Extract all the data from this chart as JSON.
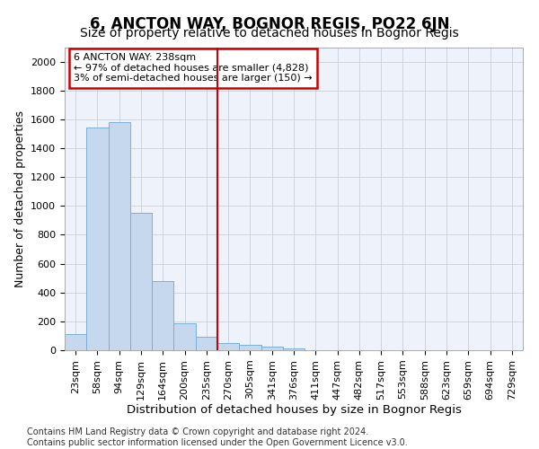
{
  "title": "6, ANCTON WAY, BOGNOR REGIS, PO22 6JN",
  "subtitle": "Size of property relative to detached houses in Bognor Regis",
  "xlabel": "Distribution of detached houses by size in Bognor Regis",
  "ylabel": "Number of detached properties",
  "categories": [
    "23sqm",
    "58sqm",
    "94sqm",
    "129sqm",
    "164sqm",
    "200sqm",
    "235sqm",
    "270sqm",
    "305sqm",
    "341sqm",
    "376sqm",
    "411sqm",
    "447sqm",
    "482sqm",
    "517sqm",
    "553sqm",
    "588sqm",
    "623sqm",
    "659sqm",
    "694sqm",
    "729sqm"
  ],
  "values": [
    110,
    1540,
    1580,
    950,
    480,
    185,
    95,
    48,
    38,
    25,
    15,
    0,
    0,
    0,
    0,
    0,
    0,
    0,
    0,
    0,
    0
  ],
  "bar_color": "#c5d8ee",
  "bar_edge_color": "#7aafd4",
  "vline_color": "#cc0000",
  "annotation_text": "6 ANCTON WAY: 238sqm\n← 97% of detached houses are smaller (4,828)\n3% of semi-detached houses are larger (150) →",
  "annotation_box_color": "#cc0000",
  "ylim": [
    0,
    2100
  ],
  "yticks": [
    0,
    200,
    400,
    600,
    800,
    1000,
    1200,
    1400,
    1600,
    1800,
    2000
  ],
  "footer": "Contains HM Land Registry data © Crown copyright and database right 2024.\nContains public sector information licensed under the Open Government Licence v3.0.",
  "title_fontsize": 12,
  "subtitle_fontsize": 10,
  "xlabel_fontsize": 9.5,
  "ylabel_fontsize": 9,
  "footer_fontsize": 7,
  "tick_fontsize": 8,
  "bg_color": "#edf2fb"
}
